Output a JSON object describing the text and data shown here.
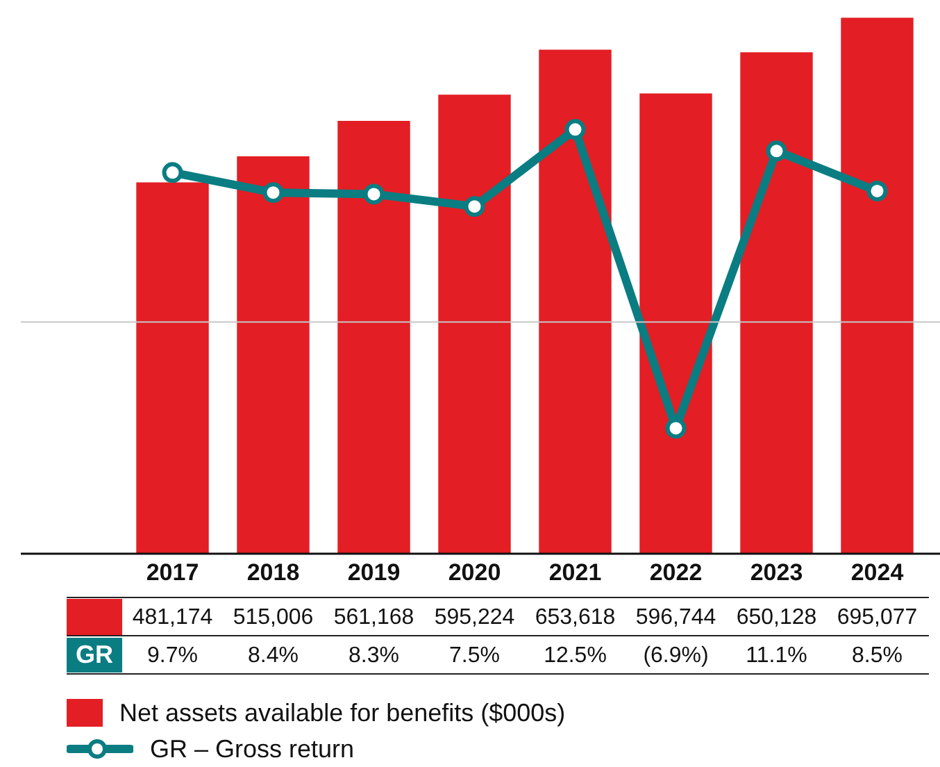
{
  "chart_data": {
    "type": "bar",
    "categories": [
      "2017",
      "2018",
      "2019",
      "2020",
      "2021",
      "2022",
      "2023",
      "2024"
    ],
    "series": [
      {
        "name": "Net assets available for benefits ($000s)",
        "color": "#e31e24",
        "values": [
          481174,
          515006,
          561168,
          595224,
          653618,
          596744,
          650128,
          695077
        ],
        "value_labels": [
          "481,174",
          "515,006",
          "561,168",
          "595,224",
          "653,618",
          "596,744",
          "650,128",
          "695,077"
        ]
      },
      {
        "name": "GR – Gross return",
        "type": "line",
        "axis": "y2",
        "color": "#0a7d82",
        "marker": "circle",
        "values": [
          9.7,
          8.4,
          8.3,
          7.5,
          12.5,
          -6.9,
          11.1,
          8.5
        ],
        "value_labels": [
          "9.7%",
          "8.4%",
          "8.3%",
          "7.5%",
          "12.5%",
          "(6.9%)",
          "11.1%",
          "8.5%"
        ]
      }
    ],
    "tick_labels": "x",
    "legend": "bottom",
    "ref_lines": [
      {
        "axis": "y2",
        "value": 0,
        "color": "#c8c8c8"
      }
    ],
    "annotations": [
      "GR"
    ]
  }
}
